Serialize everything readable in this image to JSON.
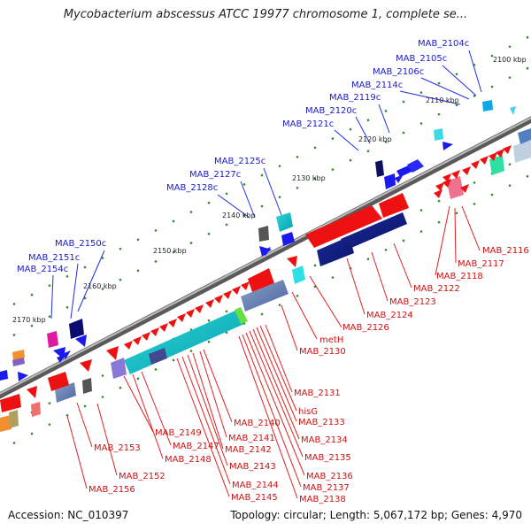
{
  "header": {
    "title": "Mycobacterium abscessus ATCC 19977 chromosome 1, complete se..."
  },
  "footer": {
    "accession": "Accession: NC_010397",
    "summary": "Topology: circular; Length: 5,067,172 bp; Genes: 4,970"
  },
  "colors": {
    "forward_cds": "#ee1111",
    "reverse_cds": "#1a1aee",
    "label_forward": "#cc1111",
    "label_reverse": "#1a1acc",
    "backbone": "#777777"
  },
  "ticks": [
    "2100 kbp",
    "2110 kbp",
    "2120 kbp",
    "2130 kbp",
    "2140 kbp",
    "2150 kbp",
    "2160 kbp",
    "2170 kbp"
  ],
  "genes_upper": [
    "MAB_2104c",
    "MAB_2105c",
    "MAB_2106c",
    "MAB_2114c",
    "MAB_2119c",
    "MAB_2120c",
    "MAB_2121c",
    "MAB_2125c",
    "MAB_2127c",
    "MAB_2128c",
    "MAB_2150c",
    "MAB_2151c",
    "MAB_2154c"
  ],
  "genes_lower": [
    "MAB_2116",
    "MAB_2117",
    "MAB_2118",
    "MAB_2122",
    "MAB_2123",
    "MAB_2124",
    "MAB_2126",
    "metH",
    "MAB_2130",
    "MAB_2131",
    "hisG",
    "MAB_2133",
    "MAB_2134",
    "MAB_2135",
    "MAB_2136",
    "MAB_2137",
    "MAB_2138",
    "MAB_2140",
    "MAB_2141",
    "MAB_2142",
    "MAB_2143",
    "MAB_2144",
    "MAB_2145",
    "MAB_2147",
    "MAB_2148",
    "MAB_2149",
    "MAB_2152",
    "MAB_2153",
    "MAB_2156"
  ]
}
